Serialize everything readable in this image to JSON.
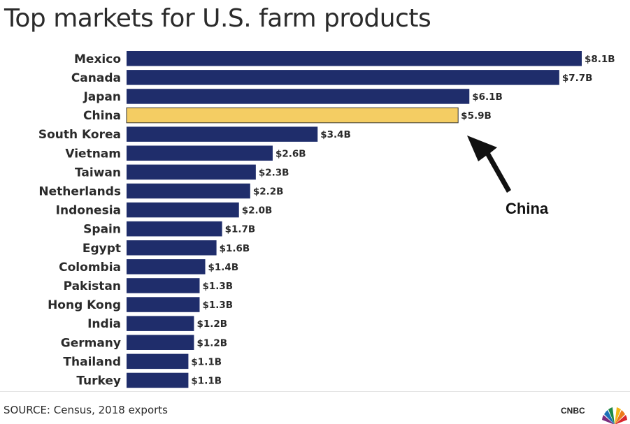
{
  "chart_data": {
    "type": "bar",
    "orientation": "horizontal",
    "title": "Top markets for U.S. farm products",
    "categories": [
      "Mexico",
      "Canada",
      "Japan",
      "China",
      "South Korea",
      "Vietnam",
      "Taiwan",
      "Netherlands",
      "Indonesia",
      "Spain",
      "Egypt",
      "Colombia",
      "Pakistan",
      "Hong Kong",
      "India",
      "Germany",
      "Thailand",
      "Turkey"
    ],
    "values": [
      8.1,
      7.7,
      6.1,
      5.9,
      3.4,
      2.6,
      2.3,
      2.2,
      2.0,
      1.7,
      1.6,
      1.4,
      1.3,
      1.3,
      1.2,
      1.2,
      1.1,
      1.1
    ],
    "value_labels": [
      "$8.1B",
      "$7.7B",
      "$6.1B",
      "$5.9B",
      "$3.4B",
      "$2.6B",
      "$2.3B",
      "$2.2B",
      "$2.0B",
      "$1.7B",
      "$1.6B",
      "$1.4B",
      "$1.3B",
      "$1.3B",
      "$1.2B",
      "$1.2B",
      "$1.1B",
      "$1.1B"
    ],
    "highlight": "China",
    "annotation": "China",
    "xlim": [
      0,
      8.1
    ],
    "grid": false,
    "colors": {
      "bar": "#1f2d6b",
      "highlight": "#f4cd63",
      "highlight_border": "#333333"
    }
  },
  "footer": {
    "source": "SOURCE: Census, 2018 exports",
    "brand": "CNBC"
  }
}
